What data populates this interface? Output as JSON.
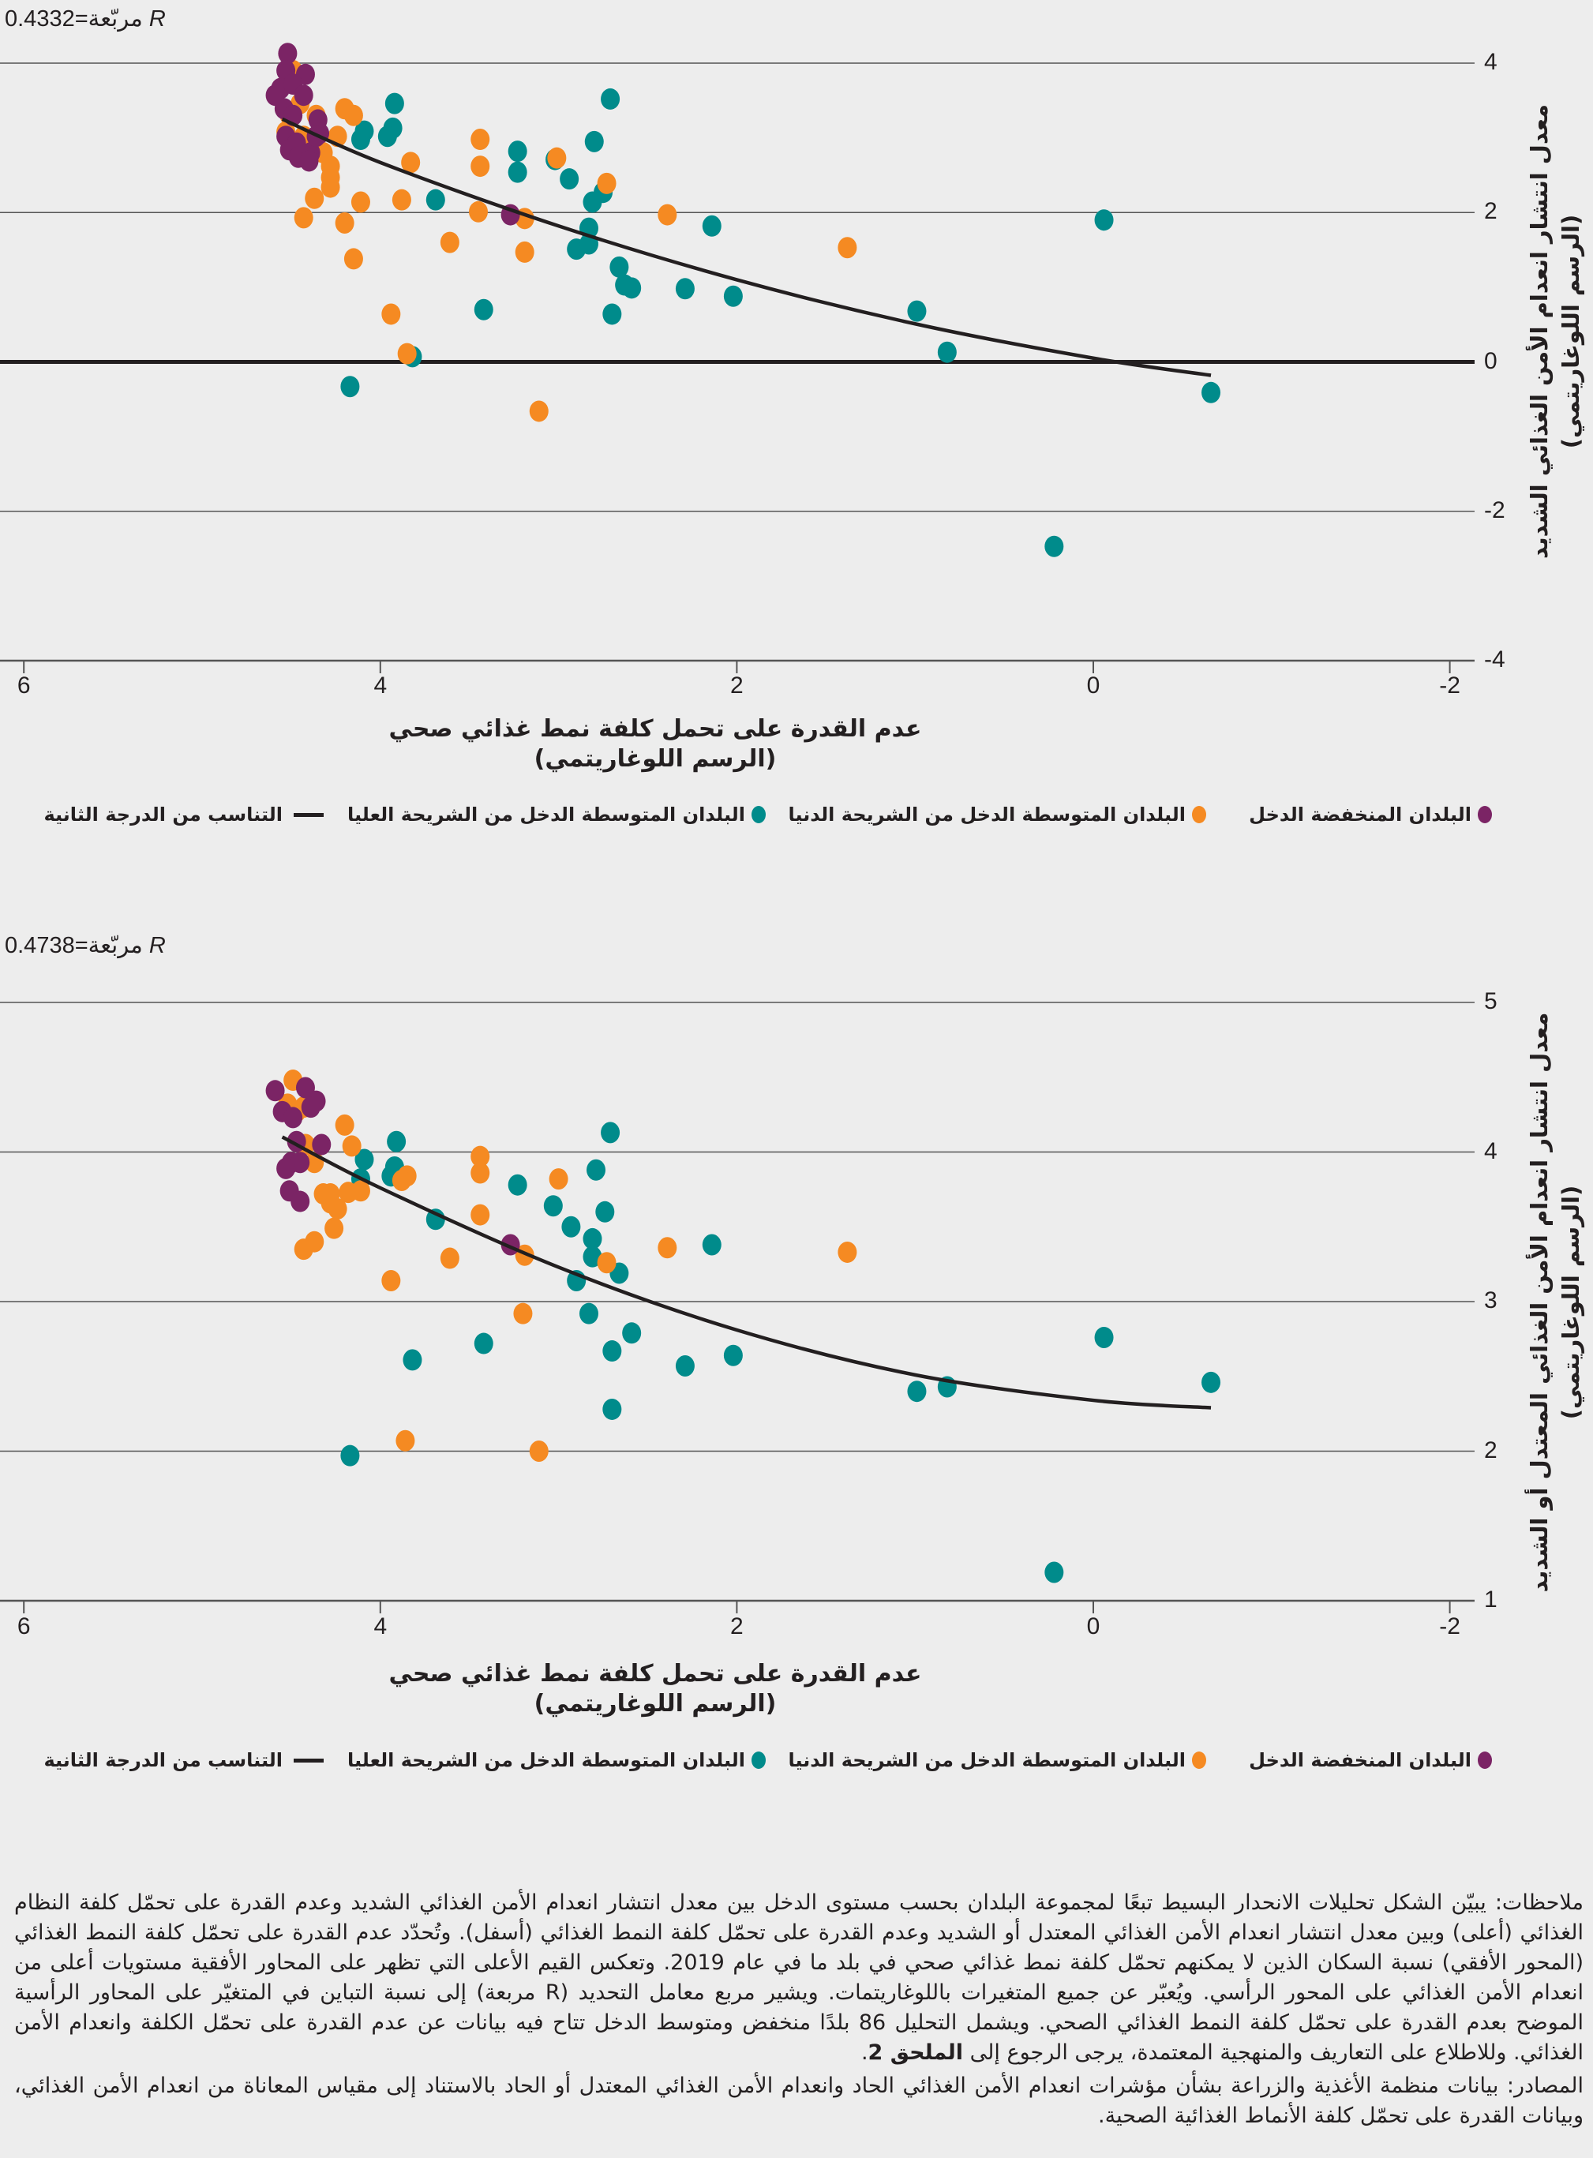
{
  "colors": {
    "low_income": "#7b2465",
    "lower_middle": "#f58a22",
    "upper_middle": "#008b8b",
    "fit": "#231f20",
    "grid": "#555555"
  },
  "legend": {
    "low_income": "البلدان المنخفضة الدخل",
    "lower_middle": "البلدان المتوسطة الدخل من الشريحة الدنيا",
    "upper_middle": "البلدان المتوسطة الدخل من الشريحة العليا",
    "fit": "التناسب من الدرجة الثانية"
  },
  "chart_data": [
    {
      "type": "scatter",
      "r_squared": {
        "symbol": "R",
        "label": "مربّعة",
        "value": "0.4332"
      },
      "xlabel": "عدم القدرة على تحمل كلفة نمط غذائي صحي",
      "xlabel_sub": "(الرسم اللوغاريتمي)",
      "ylabel": "معدل انتشار انعدام الأمن الغذائي الشديد",
      "ylabel_sub": "(الرسم اللوغاريتمي)",
      "xlim": [
        6,
        -2
      ],
      "ylim": [
        -4,
        4
      ],
      "x_ticks": [
        "6",
        "4",
        "2",
        "0",
        "-2"
      ],
      "y_ticks": [
        "4",
        "2",
        "0",
        "-2",
        "-4"
      ],
      "grid": true,
      "legend_position": "bottom",
      "series": [
        {
          "name": "البلدان المنخفضة الدخل",
          "key": "low_income",
          "points": [
            [
              4.52,
              4.13
            ],
            [
              4.53,
              3.9
            ],
            [
              4.42,
              3.85
            ],
            [
              4.56,
              3.66
            ],
            [
              4.49,
              3.72
            ],
            [
              4.59,
              3.57
            ],
            [
              4.43,
              3.57
            ],
            [
              4.54,
              3.39
            ],
            [
              4.49,
              3.3
            ],
            [
              4.35,
              3.24
            ],
            [
              4.53,
              3.02
            ],
            [
              4.47,
              2.93
            ],
            [
              4.34,
              3.06
            ],
            [
              4.51,
              2.84
            ],
            [
              4.46,
              2.74
            ],
            [
              4.39,
              2.8
            ],
            [
              4.4,
              2.69
            ],
            [
              4.36,
              3.02
            ],
            [
              3.27,
              1.97
            ]
          ]
        },
        {
          "name": "البلدان المتوسطة الدخل من الشريحة الدنيا",
          "key": "lower_middle",
          "points": [
            [
              4.49,
              3.9
            ],
            [
              4.45,
              3.46
            ],
            [
              4.53,
              3.08
            ],
            [
              4.51,
              3.3
            ],
            [
              4.2,
              3.39
            ],
            [
              4.15,
              3.3
            ],
            [
              4.36,
              3.3
            ],
            [
              4.43,
              3.02
            ],
            [
              4.24,
              3.02
            ],
            [
              4.32,
              2.8
            ],
            [
              4.28,
              2.62
            ],
            [
              4.28,
              2.47
            ],
            [
              4.28,
              2.34
            ],
            [
              4.37,
              2.19
            ],
            [
              4.43,
              1.93
            ],
            [
              4.2,
              1.86
            ],
            [
              4.11,
              2.14
            ],
            [
              3.83,
              2.67
            ],
            [
              3.88,
              2.17
            ],
            [
              4.15,
              1.38
            ],
            [
              3.94,
              0.64
            ],
            [
              3.85,
              0.11
            ],
            [
              3.44,
              2.98
            ],
            [
              3.44,
              2.62
            ],
            [
              3.45,
              2.01
            ],
            [
              3.61,
              1.6
            ],
            [
              3.19,
              1.92
            ],
            [
              3.19,
              1.47
            ],
            [
              3.11,
              -0.66
            ],
            [
              3.01,
              2.73
            ],
            [
              2.73,
              2.39
            ],
            [
              2.39,
              1.97
            ],
            [
              1.38,
              1.53
            ]
          ]
        },
        {
          "name": "البلدان المتوسطة الدخل من الشريحة العليا",
          "key": "upper_middle",
          "points": [
            [
              4.09,
              3.09
            ],
            [
              4.11,
              2.98
            ],
            [
              3.92,
              3.46
            ],
            [
              3.93,
              3.13
            ],
            [
              3.96,
              3.02
            ],
            [
              3.69,
              2.17
            ],
            [
              3.82,
              0.07
            ],
            [
              4.17,
              -0.33
            ],
            [
              3.42,
              0.7
            ],
            [
              3.23,
              2.82
            ],
            [
              3.23,
              2.54
            ],
            [
              3.02,
              2.71
            ],
            [
              2.94,
              2.45
            ],
            [
              2.9,
              1.51
            ],
            [
              2.71,
              3.52
            ],
            [
              2.8,
              2.95
            ],
            [
              2.75,
              2.27
            ],
            [
              2.81,
              2.14
            ],
            [
              2.83,
              1.79
            ],
            [
              2.83,
              1.58
            ],
            [
              2.66,
              1.27
            ],
            [
              2.63,
              1.03
            ],
            [
              2.59,
              0.99
            ],
            [
              2.7,
              0.64
            ],
            [
              2.29,
              0.98
            ],
            [
              2.02,
              0.88
            ],
            [
              2.14,
              1.82
            ],
            [
              0.99,
              0.68
            ],
            [
              0.82,
              0.13
            ],
            [
              -0.06,
              1.9
            ],
            [
              0.22,
              -2.47
            ],
            [
              -0.66,
              -0.41
            ]
          ]
        }
      ],
      "fit_curve": [
        [
          4.55,
          3.25
        ],
        [
          4,
          2.67
        ],
        [
          3,
          1.82
        ],
        [
          2,
          1.1
        ],
        [
          1,
          0.51
        ],
        [
          0,
          0.05
        ],
        [
          -0.66,
          -0.18
        ]
      ]
    },
    {
      "type": "scatter",
      "r_squared": {
        "symbol": "R",
        "label": "مربّعة",
        "value": "0.4738"
      },
      "xlabel": "عدم القدرة على تحمل كلفة نمط غذائي صحي",
      "xlabel_sub": "(الرسم اللوغاريتمي)",
      "ylabel": "معدل انتشار انعدام الأمن الغذائي المعتدل أو الشديد",
      "ylabel_sub": "(الرسم اللوغاريتمي)",
      "xlim": [
        6,
        -2
      ],
      "ylim": [
        1,
        5
      ],
      "x_ticks": [
        "6",
        "4",
        "2",
        "0",
        "-2"
      ],
      "y_ticks": [
        "5",
        "4",
        "3",
        "2",
        "1"
      ],
      "grid": true,
      "legend_position": "bottom",
      "series": [
        {
          "name": "البلدان المنخفضة الدخل",
          "key": "low_income",
          "points": [
            [
              4.59,
              4.41
            ],
            [
              4.55,
              4.27
            ],
            [
              4.49,
              4.23
            ],
            [
              4.42,
              4.43
            ],
            [
              4.36,
              4.34
            ],
            [
              4.39,
              4.3
            ],
            [
              4.33,
              4.05
            ],
            [
              4.5,
              3.93
            ],
            [
              4.45,
              3.93
            ],
            [
              4.53,
              3.89
            ],
            [
              4.51,
              3.74
            ],
            [
              4.47,
              4.07
            ],
            [
              4.45,
              3.67
            ],
            [
              3.27,
              3.38
            ]
          ]
        },
        {
          "name": "البلدان المتوسطة الدخل من الشريحة الدنيا",
          "key": "lower_middle",
          "points": [
            [
              4.49,
              4.48
            ],
            [
              4.52,
              4.32
            ],
            [
              4.43,
              4.3
            ],
            [
              4.47,
              4.27
            ],
            [
              4.2,
              4.18
            ],
            [
              4.16,
              4.04
            ],
            [
              4.42,
              4.05
            ],
            [
              4.37,
              3.93
            ],
            [
              4.32,
              3.72
            ],
            [
              4.28,
              3.72
            ],
            [
              4.24,
              3.62
            ],
            [
              4.26,
              3.49
            ],
            [
              4.18,
              3.73
            ],
            [
              4.11,
              3.74
            ],
            [
              3.85,
              3.84
            ],
            [
              3.88,
              3.81
            ],
            [
              4.43,
              3.35
            ],
            [
              4.37,
              3.4
            ],
            [
              4.28,
              3.66
            ],
            [
              3.94,
              3.14
            ],
            [
              3.61,
              3.29
            ],
            [
              3.86,
              2.07
            ],
            [
              3.44,
              3.97
            ],
            [
              3.44,
              3.86
            ],
            [
              3.44,
              3.58
            ],
            [
              3.19,
              3.31
            ],
            [
              3.2,
              2.92
            ],
            [
              3.11,
              2.0
            ],
            [
              3.0,
              3.82
            ],
            [
              2.73,
              3.26
            ],
            [
              2.39,
              3.36
            ],
            [
              1.38,
              3.33
            ]
          ]
        },
        {
          "name": "البلدان المتوسطة الدخل من الشريحة العليا",
          "key": "upper_middle",
          "points": [
            [
              3.91,
              4.07
            ],
            [
              4.09,
              3.95
            ],
            [
              4.11,
              3.82
            ],
            [
              3.94,
              3.84
            ],
            [
              3.92,
              3.9
            ],
            [
              3.69,
              3.55
            ],
            [
              4.17,
              1.97
            ],
            [
              3.82,
              2.61
            ],
            [
              3.42,
              2.72
            ],
            [
              3.23,
              3.78
            ],
            [
              3.03,
              3.64
            ],
            [
              2.93,
              3.5
            ],
            [
              2.79,
              3.88
            ],
            [
              2.74,
              3.6
            ],
            [
              2.81,
              3.42
            ],
            [
              2.81,
              3.3
            ],
            [
              2.9,
              3.14
            ],
            [
              2.83,
              2.92
            ],
            [
              2.66,
              3.19
            ],
            [
              2.59,
              2.79
            ],
            [
              2.7,
              2.67
            ],
            [
              2.7,
              2.28
            ],
            [
              2.29,
              2.57
            ],
            [
              2.02,
              2.64
            ],
            [
              2.14,
              3.38
            ],
            [
              0.99,
              2.4
            ],
            [
              0.82,
              2.43
            ],
            [
              -0.06,
              2.76
            ],
            [
              0.22,
              1.19
            ],
            [
              -0.66,
              2.46
            ],
            [
              2.71,
              4.13
            ]
          ]
        }
      ],
      "fit_curve": [
        [
          4.55,
          4.1
        ],
        [
          4,
          3.76
        ],
        [
          3,
          3.23
        ],
        [
          2,
          2.81
        ],
        [
          1,
          2.51
        ],
        [
          0,
          2.34
        ],
        [
          -0.66,
          2.29
        ]
      ]
    }
  ],
  "notes": {
    "label": "ملاحظات:",
    "text": "يبيّن الشكل تحليلات الانحدار البسيط تبعًا لمجموعة البلدان بحسب مستوى الدخل بين معدل انتشار انعدام الأمن الغذائي الشديد وعدم القدرة على تحمّل كلفة النظام الغذائي (أعلى) وبين معدل انتشار انعدام الأمن الغذائي المعتدل أو الشديد وعدم القدرة على تحمّل كلفة النمط الغذائي (أسفل). وتُحدّد عدم القدرة على تحمّل كلفة النمط الغذائي (المحور الأفقي) نسبة السكان الذين لا يمكنهم تحمّل كلفة نمط غذائي صحي في بلد ما في عام 2019. وتعكس القيم الأعلى التي تظهر على المحاور الأفقية مستويات أعلى من انعدام الأمن الغذائي على المحور الرأسي. ويُعبّر عن جميع المتغيرات باللوغاريتمات. ويشير مربع معامل التحديد (R مربعة) إلى نسبة التباين في المتغيّر على المحاور الرأسية الموضح بعدم القدرة على تحمّل كلفة النمط الغذائي الصحي. ويشمل التحليل 86 بلدًا منخفض ومتوسط الدخل تتاح فيه بيانات عن عدم القدرة على تحمّل الكلفة وانعدام الأمن الغذائي. وللاطلاع على التعاريف والمنهجية المعتمدة، يرجى الرجوع إلى",
    "annex": "الملحق 2",
    "end": "."
  },
  "sources": {
    "label": "المصادر:",
    "text": "بيانات منظمة الأغذية والزراعة بشأن مؤشرات انعدام الأمن الغذائي الحاد وانعدام الأمن الغذائي المعتدل أو الحاد بالاستناد إلى مقياس المعاناة من انعدام الأمن الغذائي، وبيانات القدرة على تحمّل كلفة الأنماط الغذائية الصحية."
  }
}
